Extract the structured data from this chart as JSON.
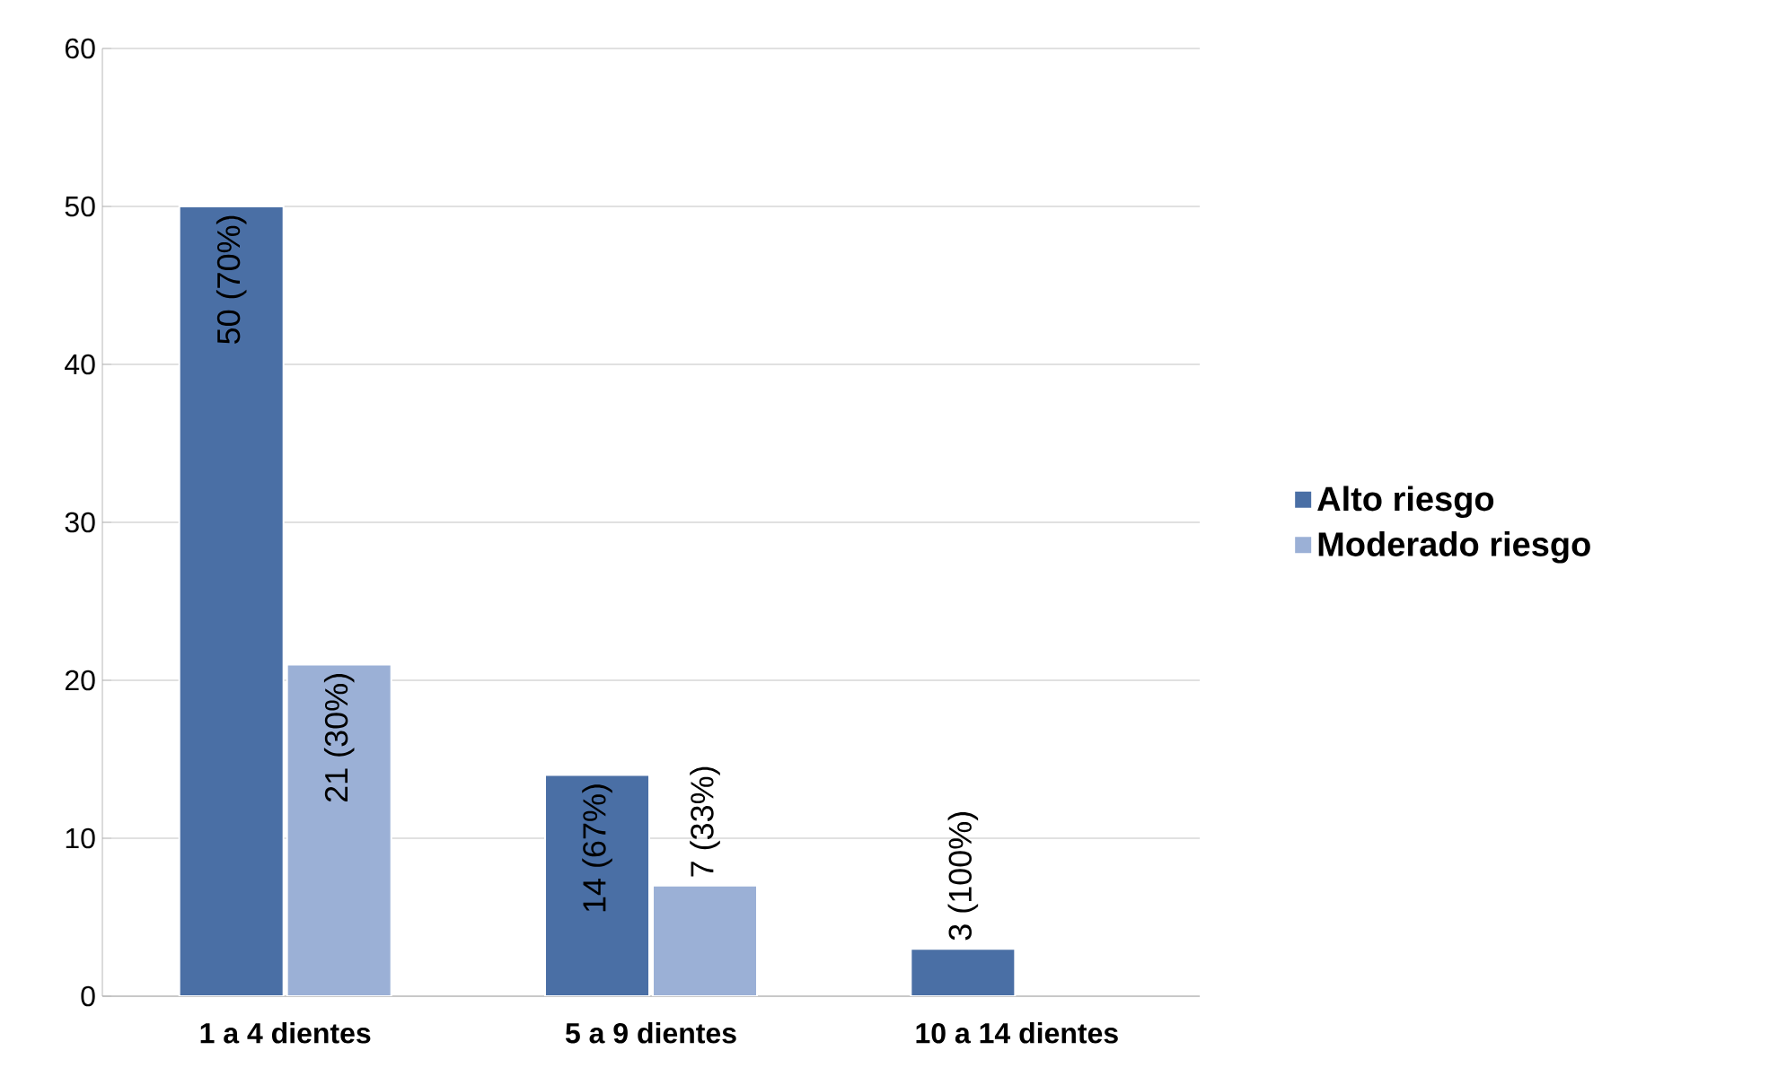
{
  "chart_data": {
    "type": "bar",
    "categories": [
      "1 a 4 dientes",
      "5 a 9 dientes",
      "10 a 14 dientes"
    ],
    "series": [
      {
        "name": "Alto riesgo",
        "color": "#4a6fa5",
        "values": [
          50,
          14,
          3
        ],
        "value_labels": [
          "50 (70%)",
          "14 (67%)",
          "3 (100%)"
        ]
      },
      {
        "name": "Moderado riesgo",
        "color": "#9bb0d6",
        "values": [
          21,
          7,
          null
        ],
        "value_labels": [
          "21 (30%)",
          "7 (33%)",
          null
        ]
      }
    ],
    "ylim": [
      0,
      60
    ],
    "yticks": [
      0,
      10,
      20,
      30,
      40,
      50,
      60
    ],
    "grid": "y",
    "legend": "right"
  }
}
